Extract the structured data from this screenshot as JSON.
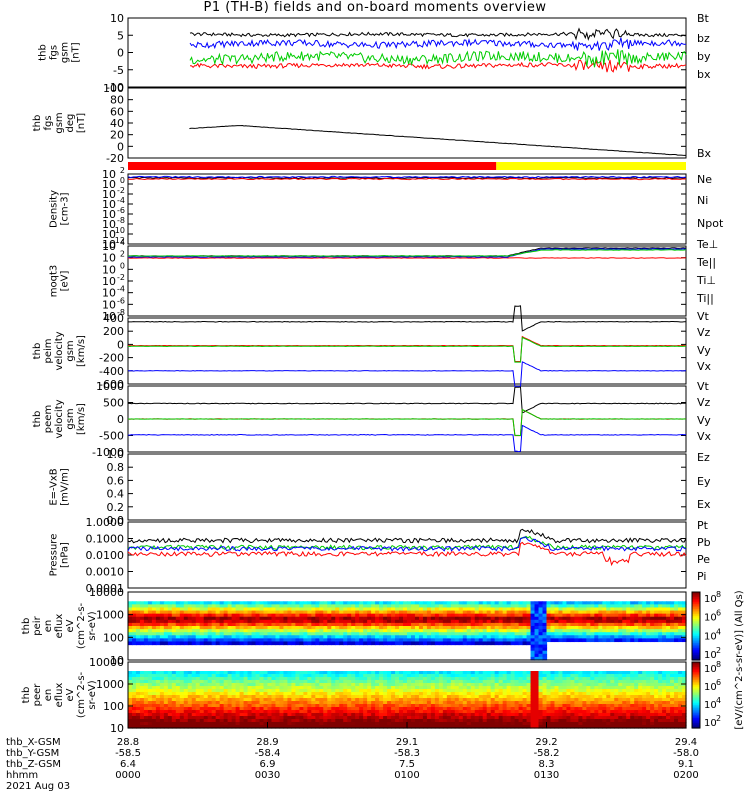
{
  "title": "P1  (TH-B) fields and on-board moments overview",
  "colors": {
    "black": "#000000",
    "red": "#ff0000",
    "green": "#00cc00",
    "blue": "#0000ff",
    "yellow": "#ffff00"
  },
  "chart_data": [
    {
      "id": "fgs",
      "type": "line",
      "ylabel": [
        "thb",
        "fgs",
        "gsm",
        "[nT]"
      ],
      "yticks": [
        "10",
        "5",
        "0",
        "-5",
        "-10"
      ],
      "ylim": [
        -10,
        10
      ],
      "legend": [
        {
          "name": "Bt",
          "color": "black"
        },
        {
          "name": "bz",
          "color": "red"
        },
        {
          "name": "by",
          "color": "green"
        },
        {
          "name": "bx",
          "color": "blue"
        }
      ],
      "series": [
        {
          "name": "Bt",
          "color": "black",
          "t0": 0.11,
          "base": 5.2,
          "amp": 0.6
        },
        {
          "name": "bz",
          "color": "red",
          "t0": 0.11,
          "base": -3.8,
          "amp": 0.8
        },
        {
          "name": "by",
          "color": "green",
          "t0": 0.11,
          "base": -1.5,
          "amp": 1.8
        },
        {
          "name": "bx",
          "color": "blue",
          "t0": 0.11,
          "base": 2.5,
          "amp": 1.2
        }
      ]
    },
    {
      "id": "fgs_bx",
      "type": "line",
      "ylabel": [
        "thb",
        "fgs",
        "gsm",
        "deg",
        "[nT]"
      ],
      "yticks": [
        "100",
        "80",
        "60",
        "40",
        "20",
        "0",
        "-20"
      ],
      "ylim": [
        -40,
        100
      ],
      "legend": [
        {
          "name": "Bx",
          "color": "black"
        }
      ],
      "series": [
        {
          "name": "Bx",
          "color": "black",
          "t0": 0.11,
          "start": 19,
          "peak": 25,
          "end": -35
        }
      ]
    },
    {
      "id": "mode_bar",
      "type": "bar",
      "segments": [
        {
          "from": 0,
          "to": 0.66,
          "color": "red"
        },
        {
          "from": 0.66,
          "to": 1,
          "color": "yellow"
        }
      ]
    },
    {
      "id": "density",
      "type": "line",
      "ylabel": [
        "Density",
        "[cm-3]"
      ],
      "yticks": [
        "10",
        "10",
        "10",
        "10",
        "10",
        "10",
        "10",
        "10"
      ],
      "yexp": [
        "2",
        "0",
        "-2",
        "-4",
        "-6",
        "-8",
        "-10",
        "-12"
      ],
      "legend": [
        {
          "name": "Ne",
          "color": "red"
        },
        {
          "name": "Ni",
          "color": "black"
        },
        {
          "name": "Npot",
          "color": "blue"
        }
      ]
    },
    {
      "id": "temperature",
      "type": "line",
      "ylabel": [
        "moqt3",
        "[eV]"
      ],
      "yticks": [
        "10",
        "10",
        "10",
        "10",
        "10",
        "10",
        "10"
      ],
      "yexp": [
        "4",
        "2",
        "0",
        "-2",
        "-4",
        "-6",
        "-8"
      ],
      "legend": [
        {
          "name": "Te⊥",
          "color": "red"
        },
        {
          "name": "Te||",
          "color": "black"
        },
        {
          "name": "Ti⊥",
          "color": "blue"
        },
        {
          "name": "Ti||",
          "color": "green"
        }
      ]
    },
    {
      "id": "peim_vel",
      "type": "line",
      "ylabel": [
        "thb",
        "peim",
        "velocity",
        "gsm",
        "[km/s]"
      ],
      "yticks": [
        "400",
        "200",
        "0",
        "-200",
        "-400",
        "-600"
      ],
      "ylim": [
        -600,
        450
      ],
      "legend": [
        {
          "name": "Vt",
          "color": "black"
        },
        {
          "name": "Vz",
          "color": "red"
        },
        {
          "name": "Vy",
          "color": "green"
        },
        {
          "name": "Vx",
          "color": "blue"
        }
      ]
    },
    {
      "id": "peem_vel",
      "type": "line",
      "ylabel": [
        "thb",
        "peem",
        "velocity",
        "gsm",
        "[km/s]"
      ],
      "yticks": [
        "1000",
        "500",
        "0",
        "-500",
        "-1000"
      ],
      "ylim": [
        -1000,
        1000
      ],
      "legend": [
        {
          "name": "Vt",
          "color": "black"
        },
        {
          "name": "Vz",
          "color": "red"
        },
        {
          "name": "Vy",
          "color": "green"
        },
        {
          "name": "Vx",
          "color": "blue"
        }
      ]
    },
    {
      "id": "efield",
      "type": "line",
      "ylabel": [
        "E=-VxB",
        "[mV/m]"
      ],
      "yticks": [
        "1.0",
        "0.8",
        "0.6",
        "0.4",
        "0.2",
        "0.0"
      ],
      "ylim": [
        0,
        1
      ],
      "legend": [
        {
          "name": "Ez",
          "color": "red"
        },
        {
          "name": "Ey",
          "color": "green"
        },
        {
          "name": "Ex",
          "color": "blue"
        }
      ]
    },
    {
      "id": "pressure",
      "type": "line",
      "ylabel": [
        "Pressure",
        "[nPa]"
      ],
      "yticks": [
        "1.0000",
        "0.1000",
        "0.0100",
        "0.0010",
        "0.0001"
      ],
      "legend": [
        {
          "name": "Pt",
          "color": "black"
        },
        {
          "name": "Pb",
          "color": "red"
        },
        {
          "name": "Pe",
          "color": "green"
        },
        {
          "name": "Pi",
          "color": "blue"
        }
      ]
    },
    {
      "id": "peir_eflux",
      "type": "heatmap",
      "ylabel": [
        "thb",
        "peir",
        "en",
        "eflux",
        "eV",
        "(cm^2-s-",
        "sr-eV)"
      ],
      "yticks": [
        "10000",
        "1000",
        "100",
        "10"
      ]
    },
    {
      "id": "peer_eflux",
      "type": "heatmap",
      "ylabel": [
        "thb",
        "peer",
        "en",
        "eflux",
        "eV",
        "(cm^2-s-",
        "sr-eV)"
      ],
      "yticks": [
        "10000",
        "1000",
        "100",
        "10"
      ]
    }
  ],
  "colorbar": {
    "label": "[eV/(cm^2-s-sr-eV)] (All Qs)",
    "ticks": [
      {
        "base": "10",
        "exp": "8"
      },
      {
        "base": "10",
        "exp": "6"
      },
      {
        "base": "10",
        "exp": "4"
      },
      {
        "base": "10",
        "exp": "2"
      }
    ]
  },
  "xaxis": {
    "rows": [
      {
        "label": "thb_X-GSM",
        "values": [
          "28.8",
          "28.9",
          "29.1",
          "29.2",
          "29.4"
        ]
      },
      {
        "label": "thb_Y-GSM",
        "values": [
          "-58.5",
          "-58.4",
          "-58.3",
          "-58.2",
          "-58.0"
        ]
      },
      {
        "label": "thb_Z-GSM",
        "values": [
          "6.4",
          "6.9",
          "7.5",
          "8.3",
          "9.1"
        ]
      },
      {
        "label": "hhmm",
        "values": [
          "0000",
          "0030",
          "0100",
          "0130",
          "0200"
        ]
      }
    ],
    "date": "2021 Aug 03"
  }
}
